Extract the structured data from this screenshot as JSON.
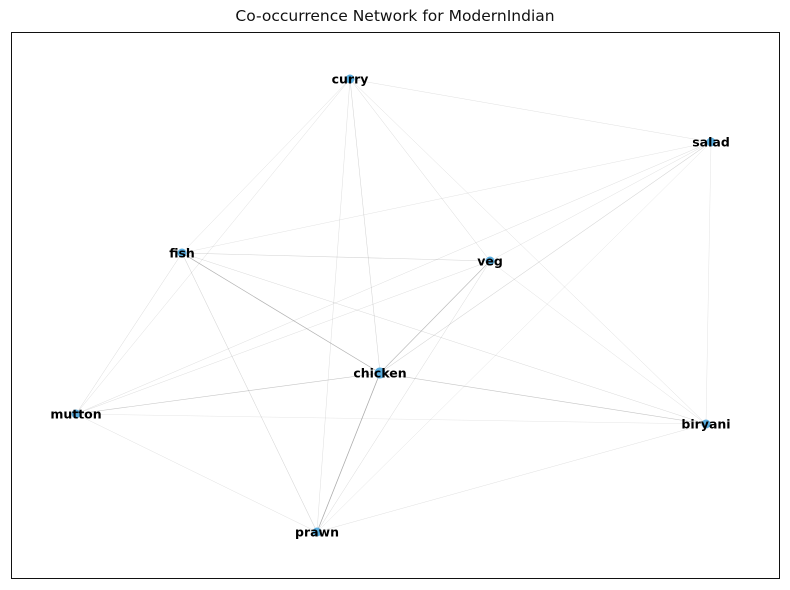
{
  "title": "Co-occurrence Network for ModernIndian",
  "colors": {
    "node": "#5aaee0",
    "edge": "#7a7a7a",
    "label": "#000000",
    "frame": "#111111"
  },
  "nodes": [
    {
      "id": "curry",
      "label": "curry"
    },
    {
      "id": "salad",
      "label": "salad"
    },
    {
      "id": "fish",
      "label": "fish"
    },
    {
      "id": "veg",
      "label": "veg"
    },
    {
      "id": "chicken",
      "label": "chicken"
    },
    {
      "id": "mutton",
      "label": "mutton"
    },
    {
      "id": "biryani",
      "label": "biryani"
    },
    {
      "id": "prawn",
      "label": "prawn"
    }
  ],
  "edges": [
    {
      "source": "chicken",
      "target": "fish",
      "weight": 0.55
    },
    {
      "source": "chicken",
      "target": "prawn",
      "weight": 0.6
    },
    {
      "source": "chicken",
      "target": "veg",
      "weight": 0.45
    },
    {
      "source": "chicken",
      "target": "mutton",
      "weight": 0.35
    },
    {
      "source": "chicken",
      "target": "biryani",
      "weight": 0.35
    },
    {
      "source": "chicken",
      "target": "curry",
      "weight": 0.2
    },
    {
      "source": "chicken",
      "target": "salad",
      "weight": 0.2
    },
    {
      "source": "fish",
      "target": "veg",
      "weight": 0.2
    },
    {
      "source": "fish",
      "target": "curry",
      "weight": 0.12
    },
    {
      "source": "fish",
      "target": "mutton",
      "weight": 0.15
    },
    {
      "source": "fish",
      "target": "prawn",
      "weight": 0.2
    },
    {
      "source": "fish",
      "target": "biryani",
      "weight": 0.15
    },
    {
      "source": "fish",
      "target": "salad",
      "weight": 0.08
    },
    {
      "source": "veg",
      "target": "curry",
      "weight": 0.15
    },
    {
      "source": "veg",
      "target": "prawn",
      "weight": 0.15
    },
    {
      "source": "veg",
      "target": "mutton",
      "weight": 0.12
    },
    {
      "source": "veg",
      "target": "biryani",
      "weight": 0.1
    },
    {
      "source": "veg",
      "target": "salad",
      "weight": 0.1
    },
    {
      "source": "curry",
      "target": "salad",
      "weight": 0.1
    },
    {
      "source": "curry",
      "target": "biryani",
      "weight": 0.12
    },
    {
      "source": "curry",
      "target": "mutton",
      "weight": 0.12
    },
    {
      "source": "curry",
      "target": "prawn",
      "weight": 0.12
    },
    {
      "source": "salad",
      "target": "mutton",
      "weight": 0.12
    },
    {
      "source": "salad",
      "target": "biryani",
      "weight": 0.08
    },
    {
      "source": "salad",
      "target": "prawn",
      "weight": 0.08
    },
    {
      "source": "mutton",
      "target": "biryani",
      "weight": 0.06
    },
    {
      "source": "mutton",
      "target": "prawn",
      "weight": 0.1
    },
    {
      "source": "biryani",
      "target": "prawn",
      "weight": 0.1
    }
  ]
}
